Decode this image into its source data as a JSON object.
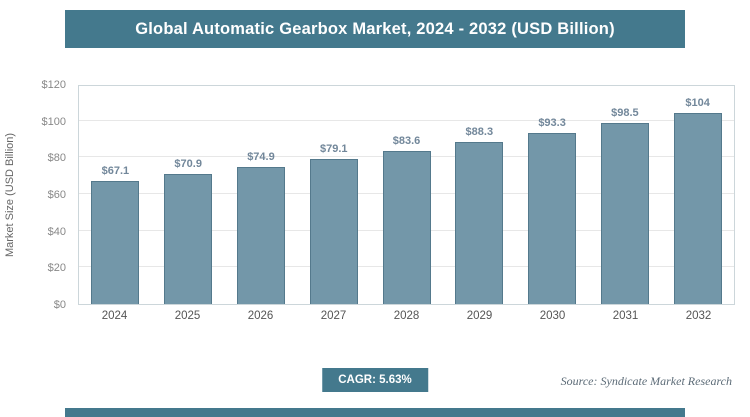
{
  "header": {
    "title": "Global Automatic Gearbox Market, 2024 - 2032 (USD Billion)"
  },
  "chart_data": {
    "type": "bar",
    "title": "Global Automatic Gearbox Market, 2024 - 2032 (USD Billion)",
    "categories": [
      "2024",
      "2025",
      "2026",
      "2027",
      "2028",
      "2029",
      "2030",
      "2031",
      "2032"
    ],
    "values": [
      67.1,
      70.9,
      74.9,
      79.1,
      83.6,
      88.3,
      93.3,
      98.5,
      104
    ],
    "data_labels": [
      "$67.1",
      "$70.9",
      "$74.9",
      "$79.1",
      "$83.6",
      "$88.3",
      "$93.3",
      "$98.5",
      "$104"
    ],
    "xlabel": "",
    "ylabel": "Market Size (USD Billion)",
    "ylim": [
      0,
      120
    ],
    "ytick_step": 20,
    "ytick_labels": [
      "$0",
      "$20",
      "$40",
      "$60",
      "$80",
      "$100",
      "$120"
    ],
    "grid": true,
    "legend": "none",
    "bar_color": "#7397A9",
    "bar_border_color": "#54798C"
  },
  "footer": {
    "cagr_label": "CAGR: 5.63%",
    "source": "Source: Syndicate Market Research"
  },
  "colors": {
    "accent": "#44798D",
    "value_label": "#72879A",
    "gridline": "#e7e7e7"
  }
}
